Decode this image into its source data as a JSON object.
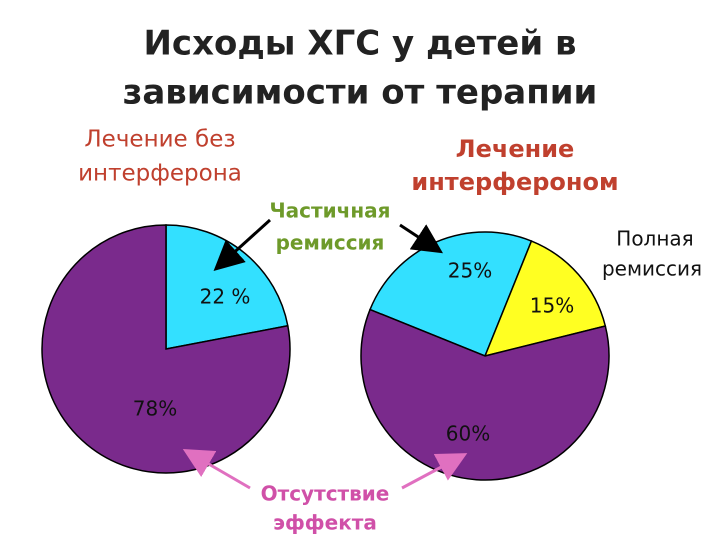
{
  "title": [
    "Исходы ХГС у детей в",
    "зависимости от терапии"
  ],
  "annotations": [
    {
      "text": [
        "Частичная",
        "ремиссия"
      ]
    },
    {
      "text": [
        "Полная",
        "ремиссия"
      ]
    },
    {
      "text": [
        "Отсутствие",
        "эффекта"
      ]
    }
  ],
  "chart_data": [
    {
      "type": "pie",
      "title": [
        "Лечение без",
        "интерферона"
      ],
      "values": [
        22,
        78
      ],
      "value_labels": [
        "22 %",
        "78%"
      ],
      "colors": [
        "#33e0ff",
        "#7a2a8c"
      ]
    },
    {
      "type": "pie",
      "title": [
        "Лечение",
        "интерфероном"
      ],
      "values": [
        25,
        15,
        60
      ],
      "value_labels": [
        "25%",
        "15%",
        "60%"
      ],
      "colors": [
        "#33e0ff",
        "#ffff22",
        "#7a2a8c"
      ]
    }
  ]
}
